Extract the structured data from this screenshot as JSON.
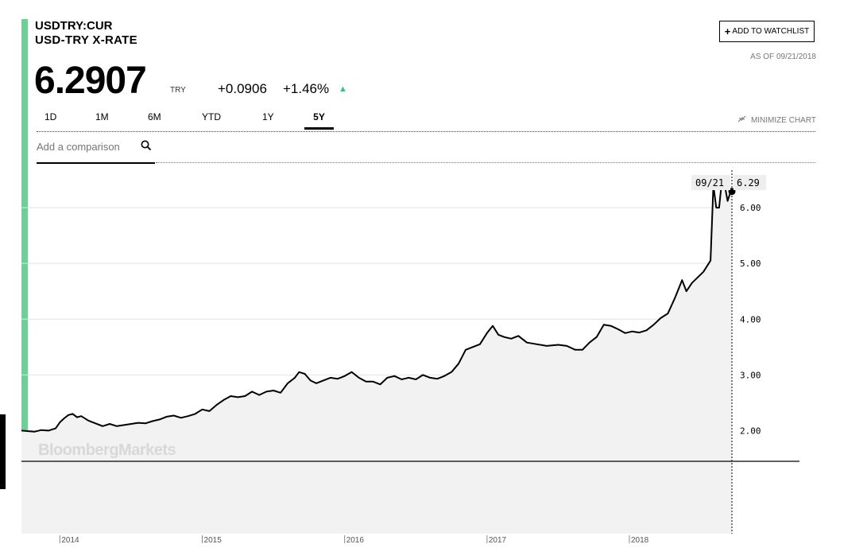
{
  "header": {
    "symbol": "USDTRY:CUR",
    "name": "USD-TRY X-RATE",
    "price": "6.2907",
    "currency": "TRY",
    "change_abs": "+0.0906",
    "change_pct": "+1.46%",
    "up_arrow": "▲",
    "watchlist_plus": "+",
    "watchlist_label": "ADD TO WATCHLIST",
    "as_of": "AS OF 09/21/2018"
  },
  "tabs": [
    {
      "label": "1D",
      "active": false
    },
    {
      "label": "1M",
      "active": false
    },
    {
      "label": "6M",
      "active": false
    },
    {
      "label": "YTD",
      "active": false
    },
    {
      "label": "1Y",
      "active": false
    },
    {
      "label": "5Y",
      "active": true
    }
  ],
  "minimize_label": "MINIMIZE CHART",
  "comparison_placeholder": "Add a comparison",
  "icons": {
    "search": "search-icon",
    "minimize": "minimize-icon",
    "up": "up-arrow-icon"
  },
  "colors": {
    "accent_green": "#6fcf97",
    "up_green": "#3fbf7f",
    "line": "#000000",
    "area": "#f2f2f2"
  },
  "chart_data": {
    "type": "line",
    "title": "",
    "xlabel": "",
    "ylabel": "",
    "ylim": [
      1.45,
      6.7
    ],
    "y_ticks": [
      2.0,
      3.0,
      4.0,
      5.0,
      6.0
    ],
    "y_tick_labels": [
      "2.00",
      "3.00",
      "4.00",
      "5.00",
      "6.00"
    ],
    "x_tick_labels": [
      "2014",
      "2015",
      "2016",
      "2017",
      "2018"
    ],
    "x_tick_years": [
      2014,
      2015,
      2016,
      2017,
      2018
    ],
    "hover_date": "09/21",
    "hover_value": "6.29",
    "watermark": "BloombergMarkets",
    "series": [
      {
        "values": [
          [
            2013.73,
            2.0
          ],
          [
            2013.78,
            1.99
          ],
          [
            2013.82,
            1.98
          ],
          [
            2013.87,
            2.01
          ],
          [
            2013.92,
            2.0
          ],
          [
            2013.97,
            2.04
          ],
          [
            2014.0,
            2.15
          ],
          [
            2014.03,
            2.22
          ],
          [
            2014.06,
            2.28
          ],
          [
            2014.09,
            2.3
          ],
          [
            2014.12,
            2.24
          ],
          [
            2014.15,
            2.26
          ],
          [
            2014.2,
            2.18
          ],
          [
            2014.25,
            2.13
          ],
          [
            2014.3,
            2.08
          ],
          [
            2014.35,
            2.12
          ],
          [
            2014.4,
            2.08
          ],
          [
            2014.45,
            2.1
          ],
          [
            2014.5,
            2.12
          ],
          [
            2014.55,
            2.14
          ],
          [
            2014.6,
            2.13
          ],
          [
            2014.65,
            2.17
          ],
          [
            2014.7,
            2.2
          ],
          [
            2014.75,
            2.25
          ],
          [
            2014.8,
            2.27
          ],
          [
            2014.85,
            2.23
          ],
          [
            2014.9,
            2.26
          ],
          [
            2014.95,
            2.3
          ],
          [
            2015.0,
            2.38
          ],
          [
            2015.05,
            2.35
          ],
          [
            2015.1,
            2.46
          ],
          [
            2015.15,
            2.55
          ],
          [
            2015.2,
            2.62
          ],
          [
            2015.25,
            2.6
          ],
          [
            2015.3,
            2.62
          ],
          [
            2015.35,
            2.7
          ],
          [
            2015.4,
            2.64
          ],
          [
            2015.45,
            2.7
          ],
          [
            2015.5,
            2.72
          ],
          [
            2015.55,
            2.68
          ],
          [
            2015.6,
            2.85
          ],
          [
            2015.65,
            2.95
          ],
          [
            2015.68,
            3.05
          ],
          [
            2015.72,
            3.02
          ],
          [
            2015.76,
            2.9
          ],
          [
            2015.8,
            2.85
          ],
          [
            2015.85,
            2.9
          ],
          [
            2015.9,
            2.95
          ],
          [
            2015.95,
            2.93
          ],
          [
            2016.0,
            2.98
          ],
          [
            2016.05,
            3.05
          ],
          [
            2016.1,
            2.95
          ],
          [
            2016.15,
            2.88
          ],
          [
            2016.2,
            2.88
          ],
          [
            2016.25,
            2.83
          ],
          [
            2016.3,
            2.95
          ],
          [
            2016.35,
            2.98
          ],
          [
            2016.4,
            2.92
          ],
          [
            2016.45,
            2.95
          ],
          [
            2016.5,
            2.92
          ],
          [
            2016.55,
            3.0
          ],
          [
            2016.6,
            2.95
          ],
          [
            2016.65,
            2.93
          ],
          [
            2016.7,
            2.98
          ],
          [
            2016.75,
            3.05
          ],
          [
            2016.8,
            3.2
          ],
          [
            2016.85,
            3.45
          ],
          [
            2016.9,
            3.5
          ],
          [
            2016.95,
            3.55
          ],
          [
            2017.0,
            3.75
          ],
          [
            2017.04,
            3.88
          ],
          [
            2017.08,
            3.72
          ],
          [
            2017.12,
            3.68
          ],
          [
            2017.17,
            3.65
          ],
          [
            2017.22,
            3.7
          ],
          [
            2017.28,
            3.58
          ],
          [
            2017.35,
            3.55
          ],
          [
            2017.42,
            3.52
          ],
          [
            2017.5,
            3.54
          ],
          [
            2017.56,
            3.52
          ],
          [
            2017.62,
            3.45
          ],
          [
            2017.67,
            3.45
          ],
          [
            2017.72,
            3.58
          ],
          [
            2017.77,
            3.68
          ],
          [
            2017.82,
            3.9
          ],
          [
            2017.87,
            3.88
          ],
          [
            2017.92,
            3.82
          ],
          [
            2017.97,
            3.75
          ],
          [
            2018.02,
            3.78
          ],
          [
            2018.07,
            3.76
          ],
          [
            2018.12,
            3.8
          ],
          [
            2018.17,
            3.9
          ],
          [
            2018.22,
            4.02
          ],
          [
            2018.27,
            4.1
          ],
          [
            2018.32,
            4.38
          ],
          [
            2018.37,
            4.7
          ],
          [
            2018.4,
            4.5
          ],
          [
            2018.44,
            4.65
          ],
          [
            2018.48,
            4.75
          ],
          [
            2018.52,
            4.85
          ],
          [
            2018.55,
            4.97
          ],
          [
            2018.57,
            5.05
          ],
          [
            2018.59,
            6.4
          ],
          [
            2018.61,
            6.0
          ],
          [
            2018.63,
            6.0
          ],
          [
            2018.65,
            6.5
          ],
          [
            2018.67,
            6.4
          ],
          [
            2018.69,
            6.12
          ],
          [
            2018.71,
            6.28
          ],
          [
            2018.72,
            6.29
          ]
        ]
      }
    ]
  }
}
